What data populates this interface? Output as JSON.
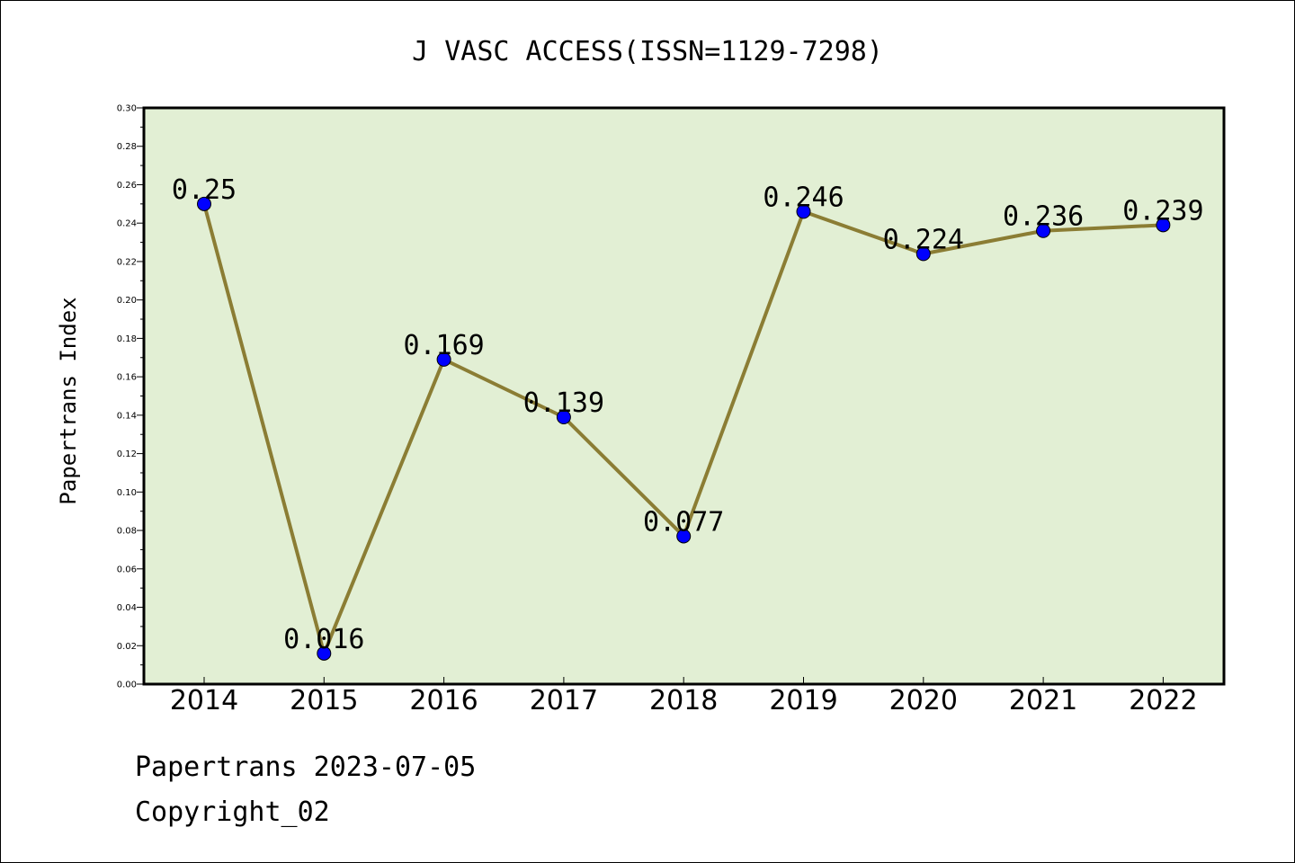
{
  "chart_data": {
    "type": "line",
    "title": "J VASC ACCESS(ISSN=1129-7298)",
    "xlabel": "",
    "ylabel": "Papertrans Index",
    "categories": [
      "2014",
      "2015",
      "2016",
      "2017",
      "2018",
      "2019",
      "2020",
      "2021",
      "2022"
    ],
    "series": [
      {
        "values": [
          0.25,
          0.016,
          0.169,
          0.139,
          0.077,
          0.246,
          0.224,
          0.236,
          0.239
        ],
        "labels": [
          "0.25",
          "0.016",
          "0.169",
          "0.139",
          "0.077",
          "0.246",
          "0.224",
          "0.236",
          "0.239"
        ]
      }
    ],
    "ylim": [
      0,
      0.3
    ],
    "yticks": [
      "0.00",
      "0.02",
      "0.04",
      "0.06",
      "0.08",
      "0.10",
      "0.12",
      "0.14",
      "0.16",
      "0.18",
      "0.20",
      "0.22",
      "0.24",
      "0.26",
      "0.28",
      "0.30"
    ],
    "grid": false,
    "colors": {
      "line": "#8b7d34",
      "marker": "#0000ff",
      "plot_bg": "#e2efd4"
    }
  },
  "footer": {
    "date_line": "Papertrans 2023-07-05",
    "copyright_line": "Copyright_02"
  }
}
